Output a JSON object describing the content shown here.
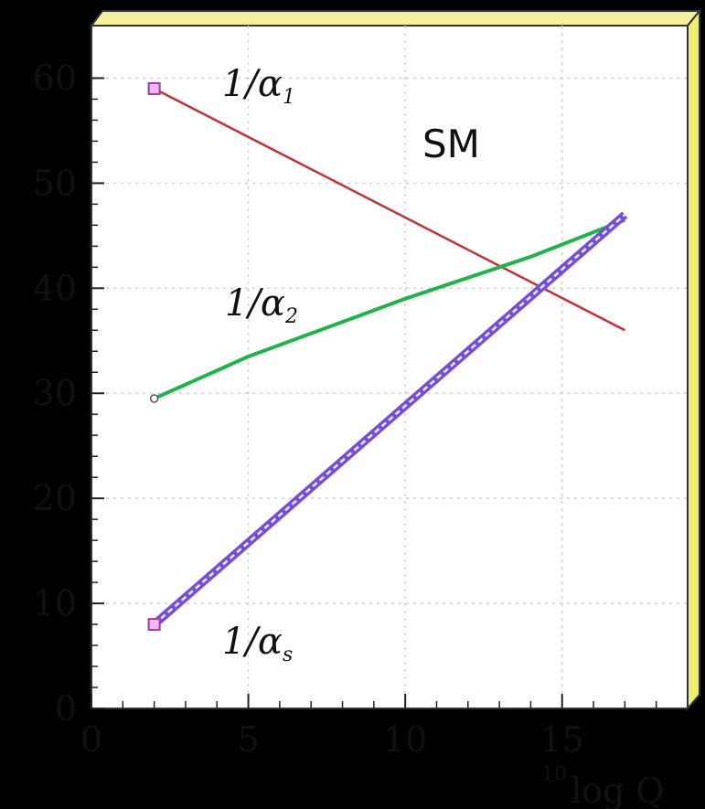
{
  "chart_data": {
    "type": "line",
    "title": "",
    "xlabel_superscript": "10",
    "xlabel_main": "log Q",
    "ylabel": "",
    "xlim": [
      0,
      19
    ],
    "ylim": [
      0,
      65
    ],
    "x_ticks": [
      0,
      5,
      10,
      15
    ],
    "y_ticks": [
      0,
      10,
      20,
      30,
      40,
      50,
      60
    ],
    "x_tick_labels": [
      "0",
      "5",
      "10",
      "15"
    ],
    "y_tick_labels": [
      "0",
      "10",
      "20",
      "30",
      "40",
      "50",
      "60"
    ],
    "grid": true,
    "annotation_model": "SM",
    "series": [
      {
        "name": "1/α1",
        "label_main": "1/α",
        "label_sub": "1",
        "color": "#c0323a",
        "points": [
          [
            2,
            59.0
          ],
          [
            17,
            36.0
          ]
        ],
        "marker": "square"
      },
      {
        "name": "1/α2",
        "label_main": "1/α",
        "label_sub": "2",
        "color": "#1fb34a",
        "points": [
          [
            2,
            29.5
          ],
          [
            5,
            33.5
          ],
          [
            10,
            39.0
          ],
          [
            14,
            43.0
          ],
          [
            17,
            46.5
          ]
        ],
        "marker": "circle"
      },
      {
        "name": "1/αs",
        "label_main": "1/α",
        "label_sub": "s",
        "color": "#5a2fd0",
        "points": [
          [
            2,
            8.0
          ],
          [
            17,
            47.0
          ]
        ],
        "marker": "square"
      }
    ]
  }
}
